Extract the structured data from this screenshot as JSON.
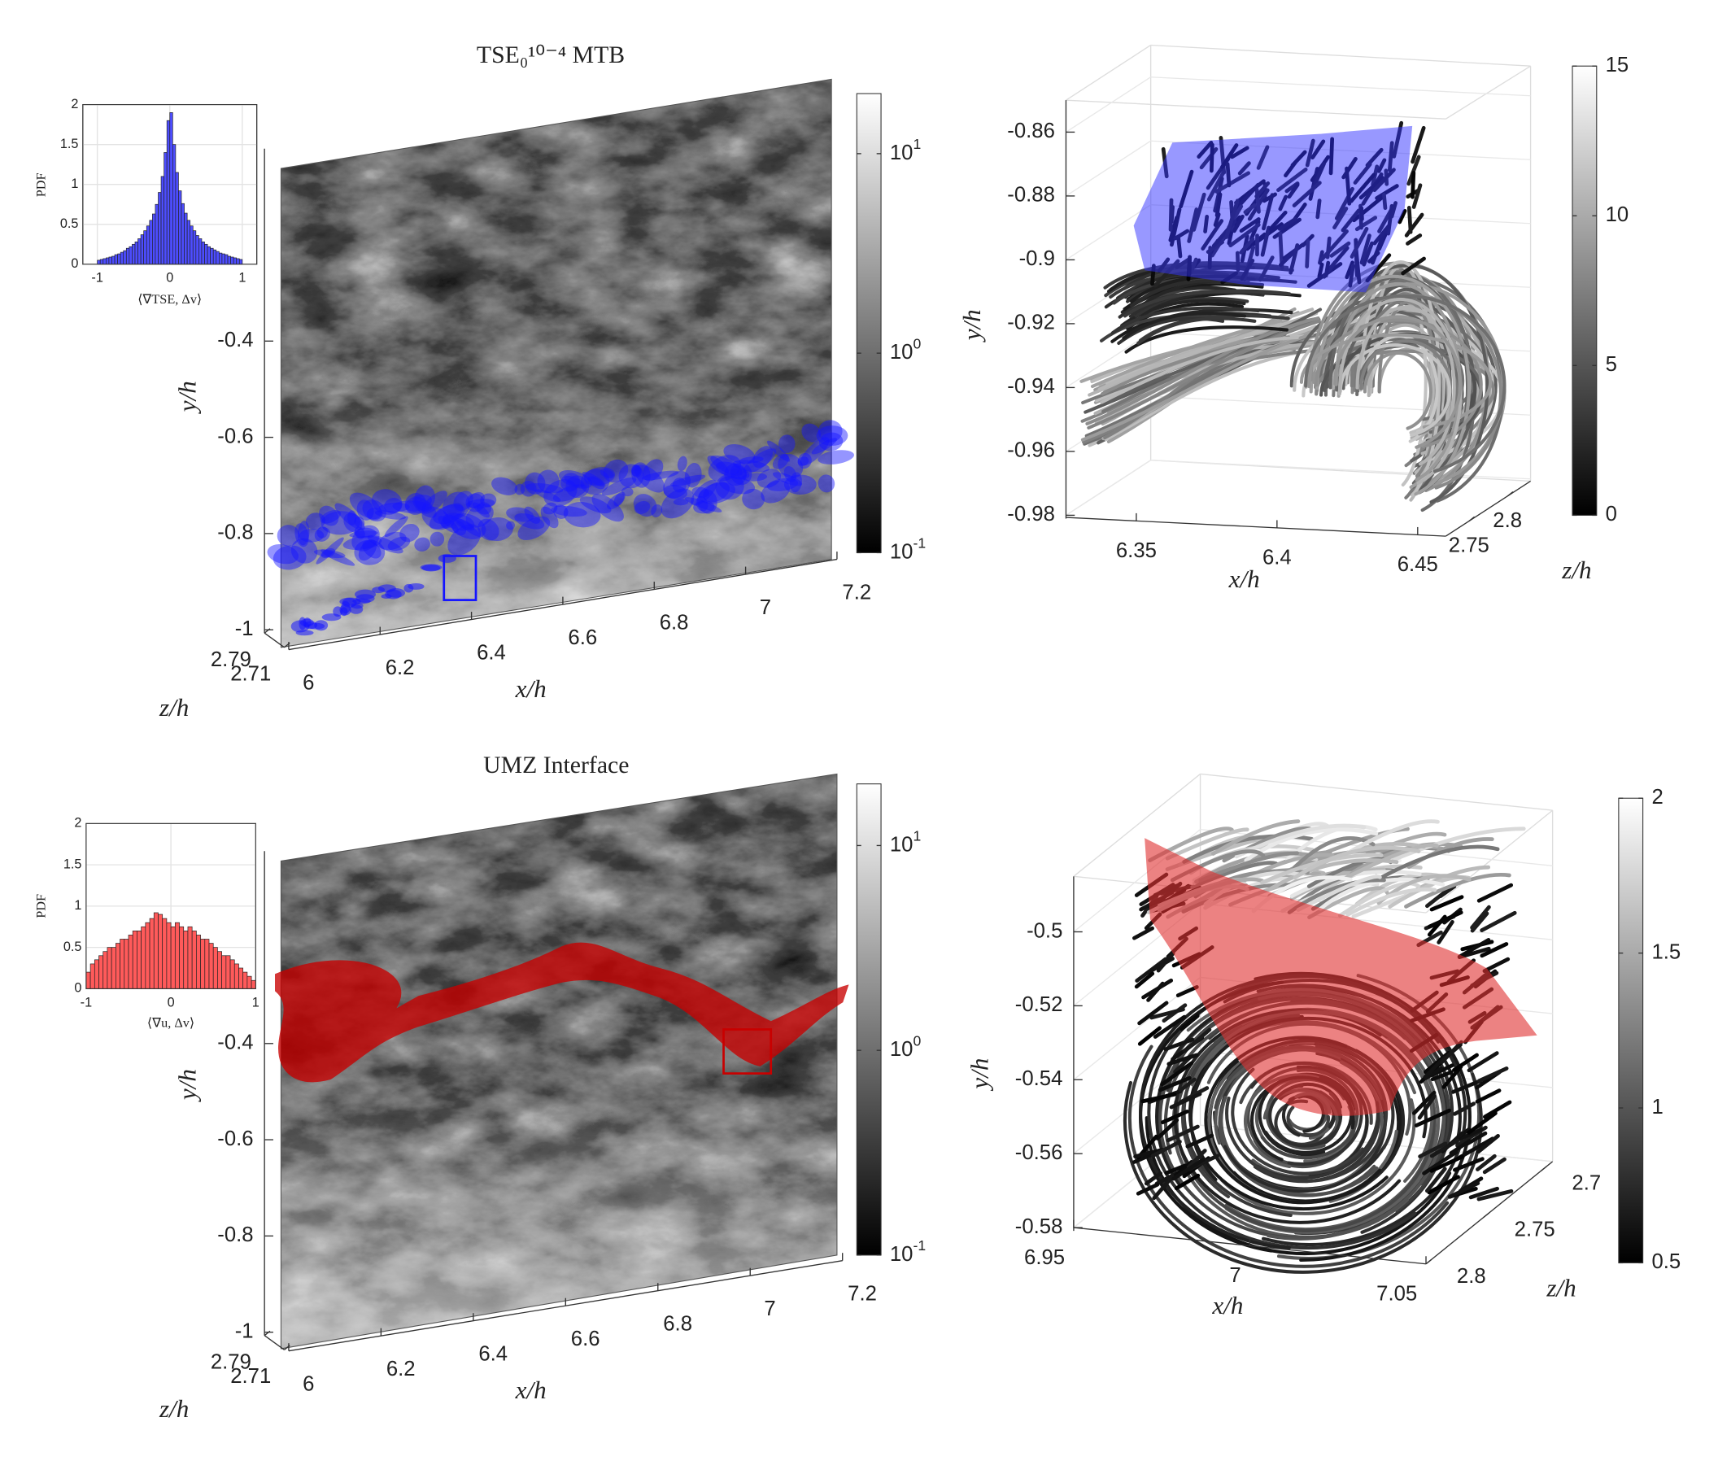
{
  "chart_data": [
    {
      "type": "slice",
      "title": "TSE₀¹⁰⁻⁴ MTB",
      "xlabel": "x/h",
      "ylabel": "y/h",
      "zlabel": "z/h",
      "xlim": [
        6,
        7.2
      ],
      "xticks": [
        6,
        6.2,
        6.4,
        6.6,
        6.8,
        7,
        7.2
      ],
      "ylim": [
        -1,
        0
      ],
      "yticks": [
        -1,
        -0.8,
        -0.6,
        -0.4
      ],
      "zlim": [
        2.79,
        2.71
      ],
      "zticks": [
        2.79,
        2.71
      ],
      "colorbar": {
        "log": true,
        "clim": [
          0.1,
          20
        ],
        "ticks": [
          {
            "value": 0.1,
            "label": "10^-1"
          },
          {
            "value": 1,
            "label": "10^0"
          },
          {
            "value": 10,
            "label": "10^1"
          }
        ]
      },
      "surface_color": "#1414ff"
    },
    {
      "type": "histogram",
      "xlabel": "⟨∇TSE, Δv⟩",
      "ylabel": "PDF",
      "bins": [
        -1,
        -0.96,
        -0.92,
        -0.88,
        -0.84,
        -0.8,
        -0.76,
        -0.72,
        -0.68,
        -0.64,
        -0.6,
        -0.56,
        -0.52,
        -0.48,
        -0.44,
        -0.4,
        -0.36,
        -0.32,
        -0.28,
        -0.24,
        -0.2,
        -0.16,
        -0.12,
        -0.08,
        -0.04,
        0,
        0.04,
        0.08,
        0.12,
        0.16,
        0.2,
        0.24,
        0.28,
        0.32,
        0.36,
        0.4,
        0.44,
        0.48,
        0.52,
        0.56,
        0.6,
        0.64,
        0.68,
        0.72,
        0.76,
        0.8,
        0.84,
        0.88,
        0.92,
        0.96,
        1
      ],
      "values": [
        0.05,
        0.06,
        0.07,
        0.08,
        0.09,
        0.1,
        0.12,
        0.13,
        0.15,
        0.17,
        0.2,
        0.22,
        0.25,
        0.28,
        0.32,
        0.37,
        0.42,
        0.48,
        0.55,
        0.63,
        0.75,
        0.9,
        1.1,
        1.4,
        1.8,
        1.9,
        1.5,
        1.15,
        0.92,
        0.76,
        0.64,
        0.55,
        0.48,
        0.42,
        0.36,
        0.32,
        0.28,
        0.25,
        0.22,
        0.2,
        0.18,
        0.16,
        0.14,
        0.13,
        0.12,
        0.1,
        0.09,
        0.08,
        0.07,
        0.06
      ],
      "color": "#4d4dff",
      "xlim": [
        -1.2,
        1.2
      ],
      "xticks": [
        -1,
        0,
        1
      ],
      "ylim": [
        0,
        2
      ],
      "yticks": [
        0,
        0.5,
        1,
        1.5,
        2
      ],
      "grid": true
    },
    {
      "type": "streamlines",
      "xlabel": "x/h",
      "ylabel": "y/h",
      "zlabel": "z/h",
      "xlim": [
        6.325,
        6.46
      ],
      "xticks": [
        6.35,
        6.4,
        6.45
      ],
      "ylim": [
        -0.98,
        -0.85
      ],
      "yticks": [
        -0.98,
        -0.96,
        -0.94,
        -0.92,
        -0.9,
        -0.88,
        -0.86
      ],
      "zlim": [
        2.72,
        2.83
      ],
      "zticks": [
        2.75,
        2.8
      ],
      "colorbar": {
        "log": false,
        "clim": [
          0,
          15
        ],
        "ticks": [
          0,
          5,
          10,
          15
        ]
      },
      "surface_color": "#3333ff",
      "grid": true
    },
    {
      "type": "slice",
      "title": "UMZ Interface",
      "xlabel": "x/h",
      "ylabel": "y/h",
      "zlabel": "z/h",
      "xlim": [
        6,
        7.2
      ],
      "xticks": [
        6,
        6.2,
        6.4,
        6.6,
        6.8,
        7,
        7.2
      ],
      "ylim": [
        -1,
        0
      ],
      "yticks": [
        -1,
        -0.8,
        -0.6,
        -0.4
      ],
      "zlim": [
        2.79,
        2.71
      ],
      "zticks": [
        2.79,
        2.71
      ],
      "colorbar": {
        "log": true,
        "clim": [
          0.1,
          20
        ],
        "ticks": [
          {
            "value": 0.1,
            "label": "10^-1"
          },
          {
            "value": 1,
            "label": "10^0"
          },
          {
            "value": 10,
            "label": "10^1"
          }
        ]
      },
      "surface_color": "#c80000"
    },
    {
      "type": "histogram",
      "xlabel": "⟨∇u, Δv⟩",
      "ylabel": "PDF",
      "bins": [
        -1,
        -0.95,
        -0.9,
        -0.85,
        -0.8,
        -0.75,
        -0.7,
        -0.65,
        -0.6,
        -0.55,
        -0.5,
        -0.45,
        -0.4,
        -0.35,
        -0.3,
        -0.25,
        -0.2,
        -0.15,
        -0.1,
        -0.05,
        0,
        0.05,
        0.1,
        0.15,
        0.2,
        0.25,
        0.3,
        0.35,
        0.4,
        0.45,
        0.5,
        0.55,
        0.6,
        0.65,
        0.7,
        0.75,
        0.8,
        0.85,
        0.9,
        0.95,
        1
      ],
      "values": [
        0.2,
        0.3,
        0.35,
        0.4,
        0.45,
        0.5,
        0.5,
        0.55,
        0.6,
        0.6,
        0.65,
        0.7,
        0.7,
        0.75,
        0.8,
        0.85,
        0.92,
        0.9,
        0.85,
        0.8,
        0.75,
        0.8,
        0.75,
        0.7,
        0.75,
        0.7,
        0.65,
        0.6,
        0.6,
        0.55,
        0.5,
        0.45,
        0.4,
        0.4,
        0.35,
        0.3,
        0.25,
        0.2,
        0.15,
        0.1
      ],
      "color": "#ff5a5a",
      "xlim": [
        -1,
        1
      ],
      "xticks": [
        -1,
        0,
        1
      ],
      "ylim": [
        0,
        2
      ],
      "yticks": [
        0,
        0.5,
        1,
        1.5,
        2
      ],
      "grid": true
    },
    {
      "type": "streamlines",
      "xlabel": "x/h",
      "ylabel": "y/h",
      "zlabel": "z/h",
      "xlim": [
        6.95,
        7.05
      ],
      "xticks": [
        6.95,
        7,
        7.05
      ],
      "ylim": [
        -0.58,
        -0.485
      ],
      "yticks": [
        -0.58,
        -0.56,
        -0.54,
        -0.52,
        -0.5
      ],
      "zlim": [
        2.8,
        2.69
      ],
      "zticks": [
        2.8,
        2.75,
        2.7
      ],
      "colorbar": {
        "log": false,
        "clim": [
          0.5,
          2
        ],
        "ticks": [
          0.5,
          1,
          1.5,
          2
        ]
      },
      "surface_color": "#e03030",
      "grid": true
    }
  ]
}
